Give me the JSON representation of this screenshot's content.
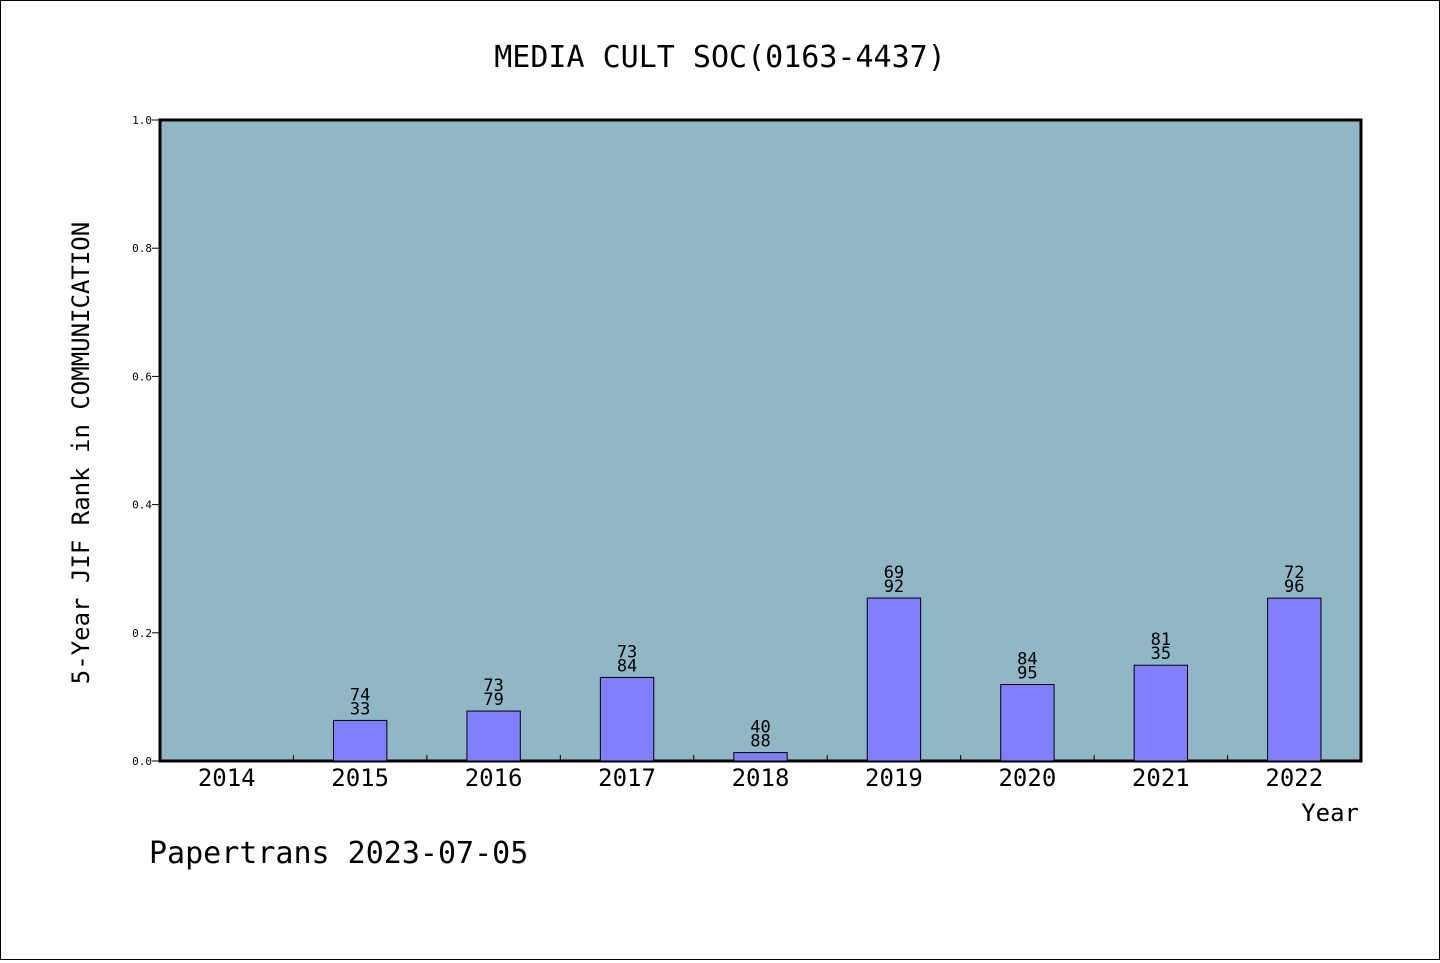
{
  "chart_data": {
    "type": "bar",
    "title": "MEDIA CULT SOC(0163-4437)",
    "xlabel": "Year",
    "ylabel": "5-Year JIF Rank in COMMUNICATION",
    "ylim": [
      0,
      1.0
    ],
    "yticks": [
      "0.0",
      "0.2",
      "0.4",
      "0.6",
      "0.8",
      "1.0"
    ],
    "grid": false,
    "categories": [
      "2014",
      "2015",
      "2016",
      "2017",
      "2018",
      "2019",
      "2020",
      "2021",
      "2022"
    ],
    "values": [
      null,
      0.0633,
      0.0779,
      0.1304,
      0.0131,
      0.2542,
      0.1193,
      0.1494,
      0.2541
    ],
    "bar_labels": [
      null,
      [
        "74",
        "33"
      ],
      [
        "73",
        "79"
      ],
      [
        "73",
        "84"
      ],
      [
        "40",
        "88"
      ],
      [
        "69",
        "92"
      ],
      [
        "84",
        "95"
      ],
      [
        "81",
        "35"
      ],
      [
        "72",
        "96"
      ]
    ],
    "colors": {
      "plot_background": "#8fb7c5",
      "bar_fill": "#8080ff",
      "bar_stroke": "#000000"
    }
  },
  "footer": {
    "credit": "Papertrans 2023-07-05"
  }
}
